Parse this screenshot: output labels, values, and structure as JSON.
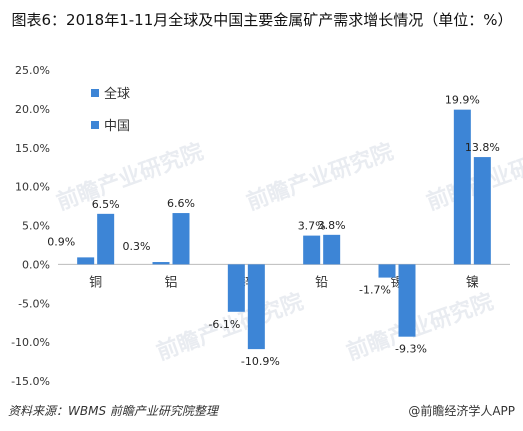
{
  "title": "图表6：2018年1-11月全球及中国主要金属矿产需求增长情况（单位：%）",
  "source": "资料来源：WBMS 前瞻产业研究院整理",
  "brand": "@前瞻经济学人APP",
  "watermark": "前瞻产业研究院",
  "chart_data": {
    "type": "bar",
    "title": "图表6：2018年1-11月全球及中国主要金属矿产需求增长情况（单位：%）",
    "categories": [
      "铜",
      "铝",
      "锌",
      "铅",
      "锡",
      "镍"
    ],
    "series": [
      {
        "name": "全球",
        "color": "#3d85d6",
        "values": [
          0.9,
          0.3,
          -6.1,
          3.7,
          -1.7,
          19.9
        ],
        "labels": [
          "0.9%",
          "0.3%",
          "-6.1%",
          "3.7%",
          "-1.7%",
          "19.9%"
        ]
      },
      {
        "name": "中国",
        "color": "#3d85d6",
        "values": [
          6.5,
          6.6,
          -10.9,
          3.8,
          -9.3,
          13.8
        ],
        "labels": [
          "6.5%",
          "6.6%",
          "-10.9%",
          "3.8%",
          "-9.3%",
          "13.8%"
        ]
      }
    ],
    "ylim": [
      -15,
      25
    ],
    "yticks": [
      "-15.0%",
      "-10.0%",
      "-5.0%",
      "0.0%",
      "5.0%",
      "10.0%",
      "15.0%",
      "20.0%",
      "25.0%"
    ],
    "ytick_values": [
      -15,
      -10,
      -5,
      0,
      5,
      10,
      15,
      20,
      25
    ],
    "legend_position": "top-left",
    "grid": false
  }
}
